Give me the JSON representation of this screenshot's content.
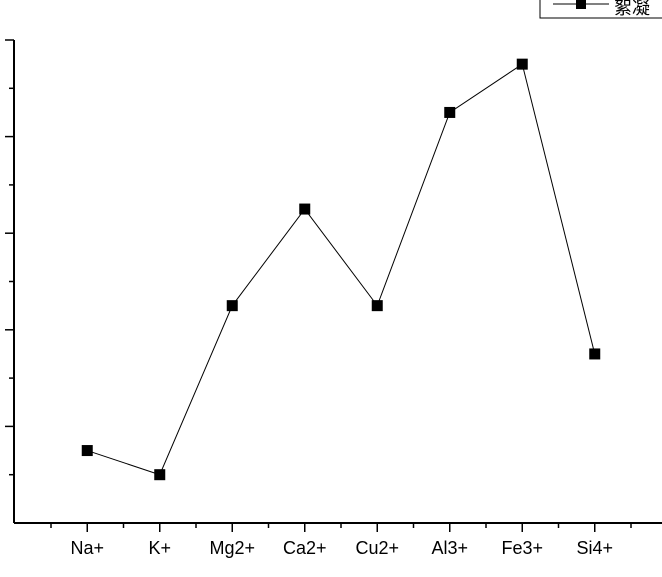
{
  "chart_data": {
    "type": "line",
    "categories": [
      "Na+",
      "K+",
      "Mg2+",
      "Ca2+",
      "Cu2+",
      "Al3+",
      "Fe3+",
      "Si4+"
    ],
    "series": [
      {
        "name": "絮凝",
        "values": [
          1.0,
          0.5,
          4.0,
          6.0,
          4.0,
          8.0,
          9.0,
          3.0
        ],
        "color": "#000000",
        "marker": "square"
      }
    ],
    "ylim": [
      -0.5,
      9.5
    ],
    "y_major_ticks": [
      1.5,
      3.5,
      5.5,
      7.5,
      9.5
    ],
    "y_minor_ticks": [
      0.5,
      2.5,
      4.5,
      6.5,
      8.5
    ],
    "y_tick_labels_visible": false,
    "title": "",
    "xlabel": "",
    "ylabel": "",
    "legend_position": "top-right",
    "grid": false
  }
}
